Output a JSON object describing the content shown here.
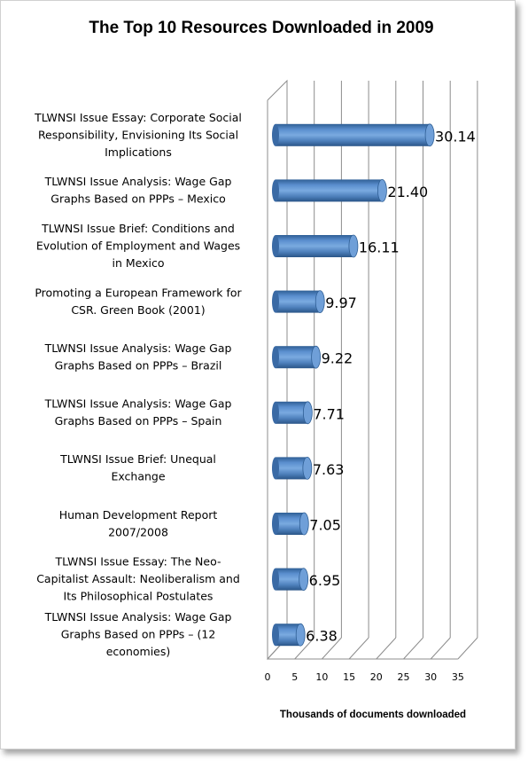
{
  "chart_data": {
    "type": "bar",
    "orientation": "horizontal",
    "style": "3d-cylinder",
    "title": "The Top 10 Resources Downloaded in 2009",
    "xlabel": "Thousands of documents downloaded",
    "ylabel": "",
    "xlim": [
      0,
      35
    ],
    "x_ticks": [
      0,
      5,
      10,
      15,
      20,
      25,
      30,
      35
    ],
    "grid": true,
    "legend": "none",
    "bar_color": "#4f81bd",
    "categories": [
      [
        "TLWNSI Issue Essay:  Corporate Social",
        "Responsibility, Envisioning Its Social",
        "Implications"
      ],
      [
        "TLWNSI Issue Analysis:  Wage Gap",
        "Graphs Based on PPPs – Mexico"
      ],
      [
        "TLWNSI Issue Brief:  Conditions and",
        "Evolution of Employment and Wages",
        "in Mexico"
      ],
      [
        "Promoting a European Framework for",
        "CSR.  Green Book  (2001)"
      ],
      [
        "TLWNSI Issue Analysis:  Wage Gap",
        "Graphs Based on PPPs – Brazil"
      ],
      [
        "TLWNSI Issue Analysis:  Wage Gap",
        "Graphs Based on PPPs – Spain"
      ],
      [
        "TLWNSI Issue Brief: Unequal",
        "Exchange"
      ],
      [
        "Human Development Report",
        "2007/2008"
      ],
      [
        "TLWNSI Issue Essay:  The Neo-",
        "Capitalist Assault: Neoliberalism and",
        "Its Philosophical Postulates"
      ],
      [
        "TLWNSI Issue Analysis:  Wage Gap",
        "Graphs Based on PPPs – (12",
        "economies)"
      ]
    ],
    "values": [
      30.14,
      21.4,
      16.11,
      9.97,
      9.22,
      7.71,
      7.63,
      7.05,
      6.95,
      6.38
    ],
    "value_labels": [
      "30.14",
      "21.40",
      "16.11",
      "9.97",
      "9.22",
      "7.71",
      "7.63",
      "7.05",
      "6.95",
      "6.38"
    ]
  }
}
